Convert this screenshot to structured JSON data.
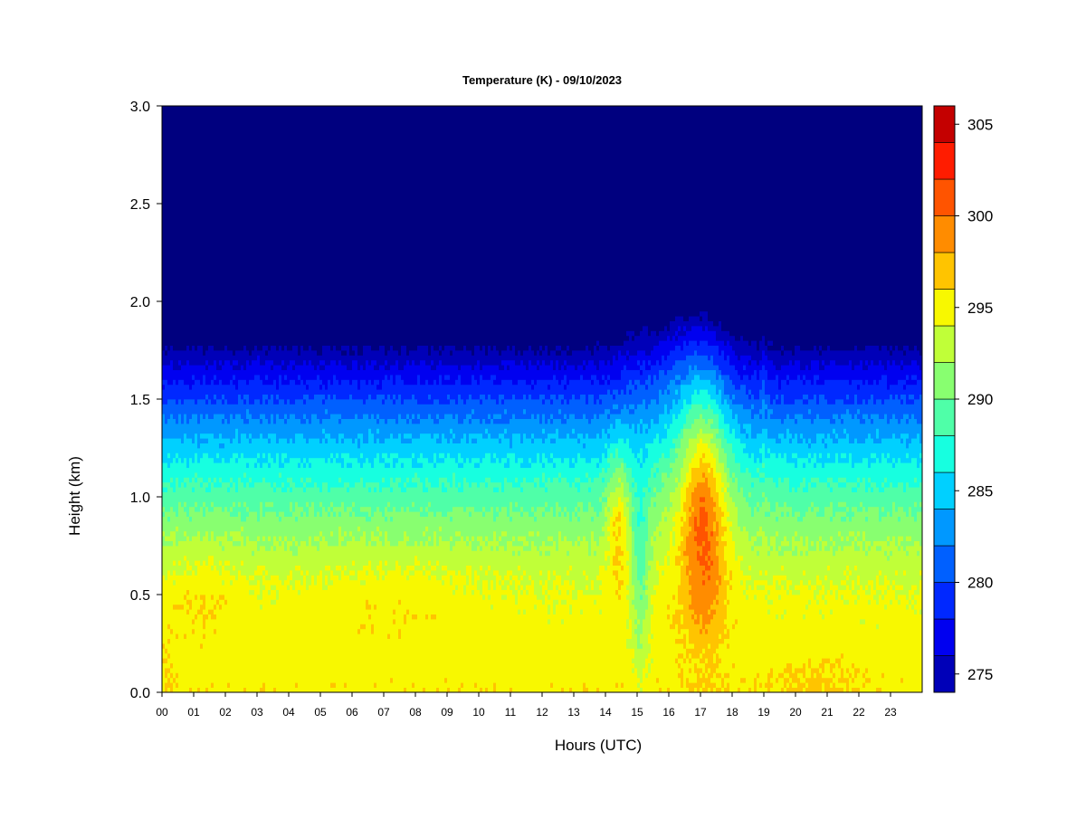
{
  "chart_data": {
    "type": "heatmap",
    "title": "Temperature (K) - 09/10/2023",
    "xlabel": "Hours (UTC)",
    "ylabel": "Height (km)",
    "x_ticks": [
      "00",
      "01",
      "02",
      "03",
      "04",
      "05",
      "06",
      "07",
      "08",
      "09",
      "10",
      "11",
      "12",
      "13",
      "14",
      "15",
      "16",
      "17",
      "18",
      "19",
      "20",
      "21",
      "22",
      "23"
    ],
    "x_range": [
      0,
      24
    ],
    "y_ticks": [
      "0.0",
      "0.5",
      "1.0",
      "1.5",
      "2.0",
      "2.5",
      "3.0"
    ],
    "y_range": [
      0,
      3
    ],
    "colorbar": {
      "levels": [
        274,
        276,
        278,
        280,
        282,
        284,
        286,
        288,
        290,
        292,
        294,
        296,
        298,
        300,
        302,
        304,
        306
      ],
      "colors": [
        "#00007f",
        "#0000b8",
        "#0000f0",
        "#0028ff",
        "#0060ff",
        "#0098ff",
        "#00d0ff",
        "#17ffe0",
        "#4fffa8",
        "#88ff70",
        "#c0ff38",
        "#f8f800",
        "#ffc400",
        "#ff8c00",
        "#ff5400",
        "#ff1c00",
        "#c40000",
        "#7f0000"
      ],
      "tick_labels": [
        "275",
        "280",
        "285",
        "290",
        "295",
        "300",
        "305"
      ],
      "tick_values": [
        275,
        280,
        285,
        290,
        295,
        300,
        305
      ]
    },
    "legend": "right colorbar",
    "grid": false
  }
}
